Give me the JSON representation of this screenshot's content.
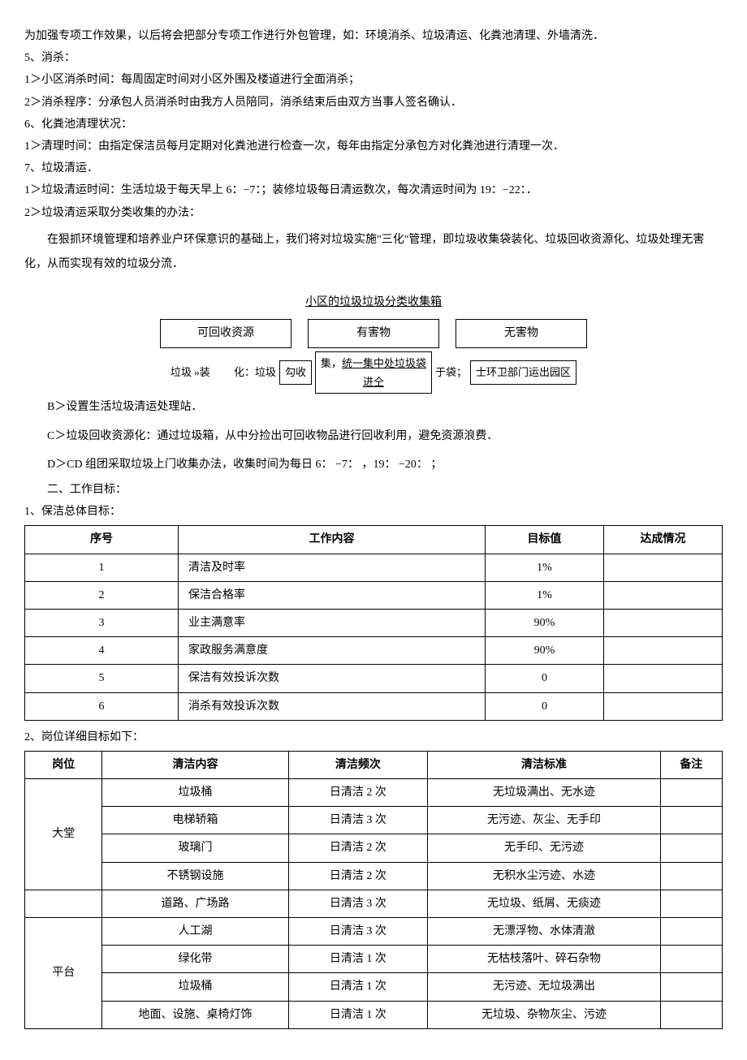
{
  "para": {
    "p1": "  为加强专项工作效果，以后将会把部分专项工作进行外包管理，如：环境消杀、垃圾清运、化粪池清理、外墙清洗．",
    "p2": "5、消杀：",
    "p3": "1＞小区消杀时间：每周固定时间对小区外围及楼道进行全面消杀；",
    "p4": "2＞消杀程序：分承包人员消杀时由我方人员陪同，消杀结束后由双方当事人签名确认．",
    "p5": "6、化粪池清理状况：",
    "p6": "1＞清理时间：由指定保洁员每月定期对化粪池进行检查一次，每年由指定分承包方对化粪池进行清理一次．",
    "p7": "7、垃圾清运．",
    "p8": " 1＞垃圾清运时间：生活垃圾于每天早上 6：−7：；装修垃圾每日清运数次，每次清运时间为 19：−22：．",
    "p9": "2＞垃圾清运采取分类收集的办法：",
    "p10": "在狠抓环境管理和培养业户环保意识的基础上，我们将对垃圾实施\"三化\"管理，即垃圾收集袋装化、垃圾回收资源化、垃圾处理无害化，从而实现有效的垃圾分流．",
    "sectionTitle": "小区的垃圾垃圾分类收集箱",
    "diag": {
      "b1": "可回收资源",
      "b2": "有害物",
      "b3": "无害物"
    },
    "row2a": "垃圾 »装         化：垃圾",
    "row2b": "勾收",
    "row2c1": "集，",
    "row2c2": "统一集中处垃圾袋",
    "row2c3": "进仝",
    "row2d": "于袋；",
    "row2e": "士环卫部门运出园区",
    "pB": "B＞设置生活垃圾清运处理站．",
    "pC": "C＞垃圾回收资源化：通过垃圾箱，从中分捡出可回收物品进行回收利用，避免资源浪费．",
    "pD": "D＞CD 组团采取垃圾上门收集办法，收集时间为每日 6： −7： ，19： −20： ；",
    "pE": "二、工作目标：",
    "pF": "1、保洁总体目标：",
    "pG": "2、岗位详细目标如下："
  },
  "table1": {
    "headers": [
      "序号",
      "工作内容",
      "目标值",
      "达成情况"
    ],
    "rows": [
      [
        "1",
        "清洁及时率",
        "1%",
        ""
      ],
      [
        "2",
        "保洁合格率",
        "1%",
        ""
      ],
      [
        "3",
        "业主满意率",
        "90%",
        ""
      ],
      [
        "4",
        "家政服务满意度",
        "90%",
        ""
      ],
      [
        "5",
        "保洁有效投诉次数",
        "0",
        ""
      ],
      [
        "6",
        "消杀有效投诉次数",
        "0",
        ""
      ]
    ]
  },
  "table2": {
    "headers": [
      "岗位",
      "清洁内容",
      "清洁频次",
      "清洁标准",
      "备注"
    ],
    "groups": [
      {
        "post": "大堂",
        "rows": [
          [
            "垃圾桶",
            "日清洁 2 次",
            "无垃圾满出、无水迹",
            ""
          ],
          [
            "电梯轿箱",
            "日清洁 3 次",
            "无污迹、灰尘、无手印",
            ""
          ],
          [
            "玻璃门",
            "日清洁 2 次",
            "无手印、无污迹",
            ""
          ],
          [
            "不锈钢设施",
            "日清洁 2 次",
            "无积水尘污迹、水迹",
            ""
          ]
        ]
      },
      {
        "post": "",
        "rows": [
          [
            "道路、广场路",
            "日清洁 3 次",
            "无垃圾、纸屑、无痰迹",
            ""
          ]
        ]
      },
      {
        "post": "平台",
        "rows": [
          [
            "人工湖",
            "日清洁 3 次",
            "无漂浮物、水体清澈",
            ""
          ],
          [
            "绿化带",
            "日清洁 1 次",
            "无枯枝落叶、碎石杂物",
            ""
          ],
          [
            "垃圾桶",
            "日清洁 1 次",
            "无污迹、无垃圾满出",
            ""
          ],
          [
            "地面、设施、桌椅灯饰",
            "日清洁 1 次",
            "无垃圾、杂物灰尘、污迹",
            ""
          ]
        ]
      }
    ]
  }
}
